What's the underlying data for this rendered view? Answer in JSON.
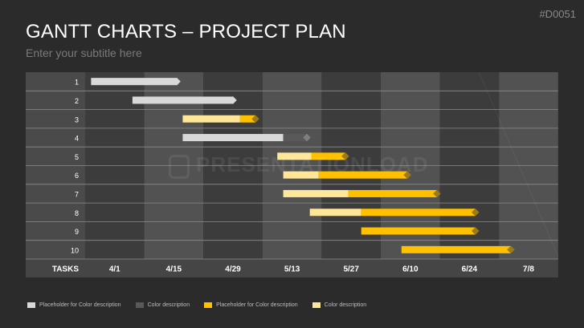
{
  "slide_id": "#D0051",
  "title": "GANTT CHARTS – PROJECT PLAN",
  "subtitle": "Enter your subtitle here",
  "watermark": "PRESENTATIONLOAD",
  "colors": {
    "background": "#2b2b2b",
    "light_gray": "#d9d9d9",
    "dark_gray": "#595959",
    "yellow": "#ffc000",
    "light_yellow": "#ffe699",
    "diamond_gold": "#9c7a1a",
    "diamond_gray": "#7f7f7f"
  },
  "chart_data": {
    "type": "gantt",
    "row_header": "TASKS",
    "columns": [
      "4/1",
      "4/15",
      "4/29",
      "5/13",
      "5/27",
      "6/10",
      "6/24",
      "7/8"
    ],
    "tasks": [
      {
        "label": "1",
        "segments": [
          {
            "start": 0.1,
            "end": 1.55,
            "color": "light_gray"
          }
        ],
        "milestone_color": "light_gray"
      },
      {
        "label": "2",
        "segments": [
          {
            "start": 0.8,
            "end": 2.5,
            "color": "light_gray"
          }
        ],
        "milestone_color": "light_gray"
      },
      {
        "label": "3",
        "segments": [
          {
            "start": 1.65,
            "end": 2.62,
            "color": "light_yellow"
          },
          {
            "start": 2.62,
            "end": 2.88,
            "color": "yellow"
          }
        ],
        "milestone_color": "diamond_gold"
      },
      {
        "label": "4",
        "segments": [
          {
            "start": 1.65,
            "end": 3.35,
            "color": "light_gray"
          },
          {
            "start": 3.35,
            "end": 3.75,
            "color": "dark_gray"
          }
        ],
        "milestone_color": "diamond_gray"
      },
      {
        "label": "5",
        "segments": [
          {
            "start": 3.25,
            "end": 3.83,
            "color": "light_yellow"
          },
          {
            "start": 3.83,
            "end": 4.4,
            "color": "yellow"
          }
        ],
        "milestone_color": "diamond_gold"
      },
      {
        "label": "6",
        "segments": [
          {
            "start": 3.35,
            "end": 3.95,
            "color": "light_yellow"
          },
          {
            "start": 3.95,
            "end": 5.45,
            "color": "yellow"
          }
        ],
        "milestone_color": "diamond_gold"
      },
      {
        "label": "7",
        "segments": [
          {
            "start": 3.35,
            "end": 4.45,
            "color": "light_yellow"
          },
          {
            "start": 4.45,
            "end": 5.95,
            "color": "yellow"
          }
        ],
        "milestone_color": "diamond_gold"
      },
      {
        "label": "8",
        "segments": [
          {
            "start": 3.8,
            "end": 4.67,
            "color": "light_yellow"
          },
          {
            "start": 4.67,
            "end": 6.6,
            "color": "yellow"
          }
        ],
        "milestone_color": "diamond_gold"
      },
      {
        "label": "9",
        "segments": [
          {
            "start": 4.67,
            "end": 6.6,
            "color": "yellow"
          }
        ],
        "milestone_color": "diamond_gold"
      },
      {
        "label": "10",
        "segments": [
          {
            "start": 5.35,
            "end": 7.2,
            "color": "yellow"
          }
        ],
        "milestone_color": "diamond_gold"
      }
    ]
  },
  "legend": [
    {
      "label": "Placeholder for Color description",
      "color": "#d9d9d9"
    },
    {
      "label": "Color description",
      "color": "#595959"
    },
    {
      "label": "Placeholder for Color description",
      "color": "#ffc000"
    },
    {
      "label": "Color description",
      "color": "#ffe699"
    }
  ]
}
